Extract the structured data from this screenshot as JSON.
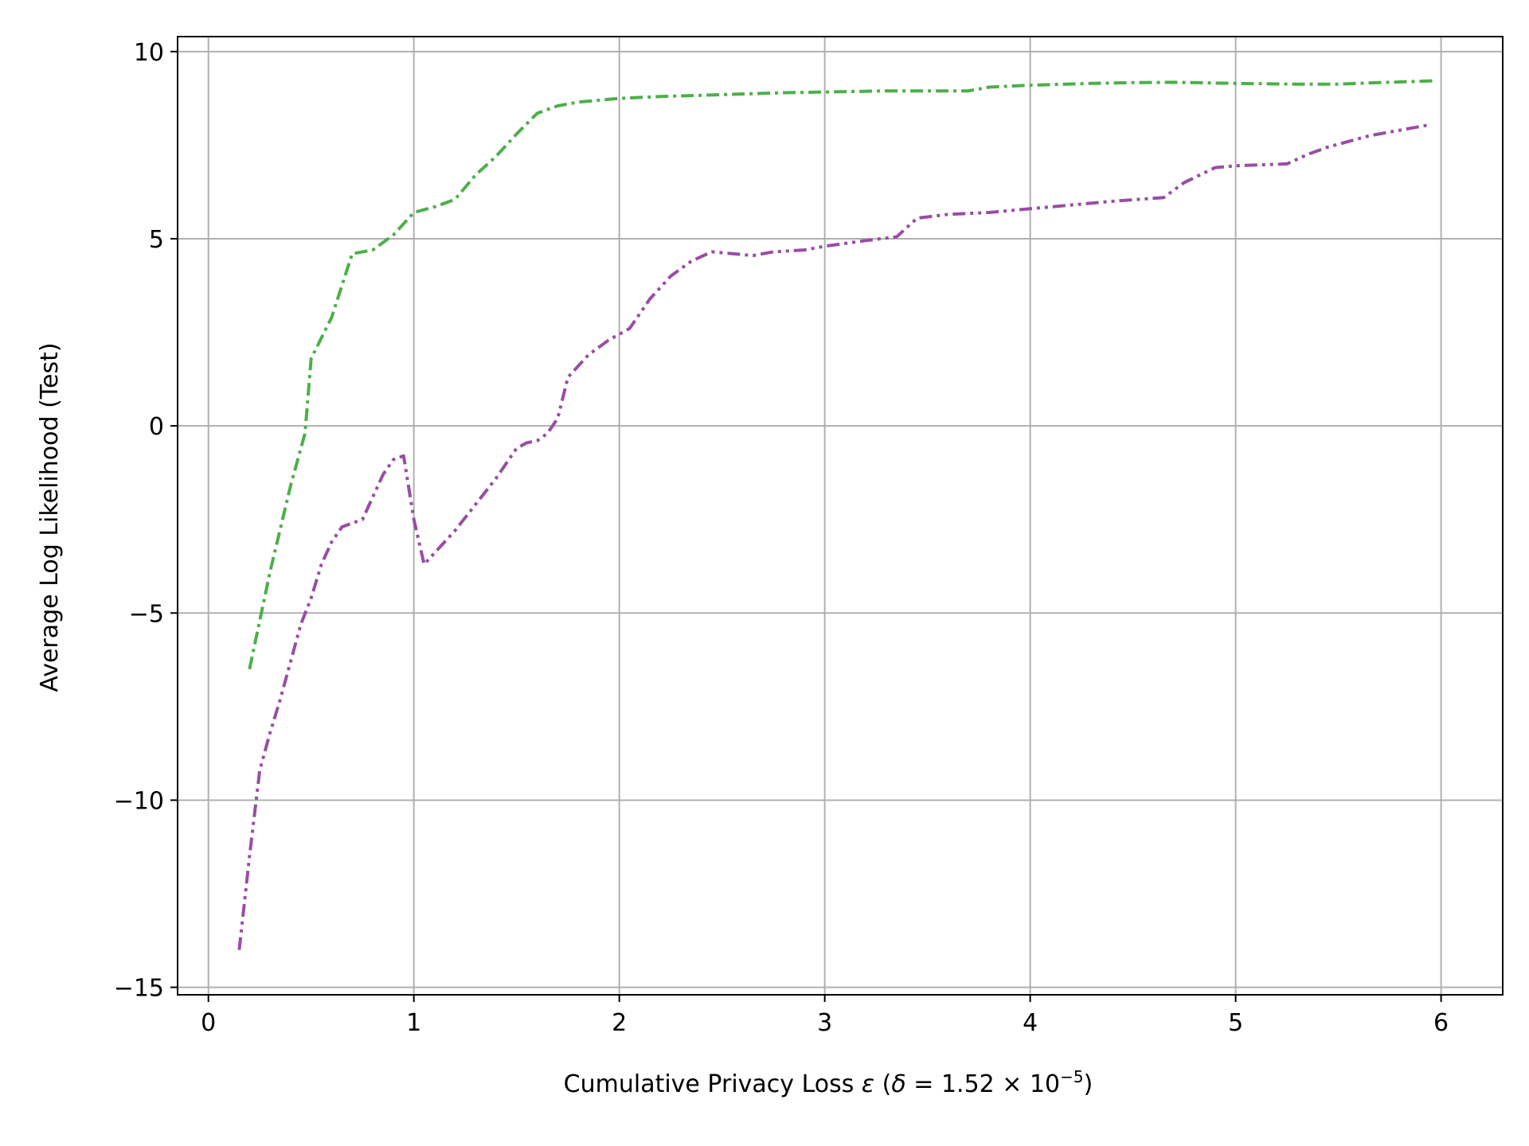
{
  "chart_data": {
    "type": "line",
    "title": "",
    "xlabel": {
      "text_main": "Cumulative Privacy Loss ",
      "epsilon": "ε",
      "paren_open": " (",
      "delta": "δ",
      "equals_value": " = 1.52 × 10",
      "exponent": "−5",
      "paren_close": ")"
    },
    "ylabel": "Average Log Likelihood (Test)",
    "xlim": [
      -0.15,
      6.3
    ],
    "ylim": [
      -15.2,
      10.4
    ],
    "x_ticks": [
      0,
      1,
      2,
      3,
      4,
      5,
      6
    ],
    "x_tick_labels": [
      "0",
      "1",
      "2",
      "3",
      "4",
      "5",
      "6"
    ],
    "y_ticks": [
      10,
      5,
      0,
      -5,
      -10,
      -15
    ],
    "y_tick_labels": [
      "10",
      "5",
      "0",
      "−5",
      "−10",
      "−15"
    ],
    "grid": true,
    "series": [
      {
        "color": "#4daf4a",
        "dash": "dashdot",
        "x": [
          0.2,
          0.3,
          0.4,
          0.47,
          0.5,
          0.6,
          0.7,
          0.8,
          0.9,
          1.0,
          1.1,
          1.2,
          1.3,
          1.4,
          1.5,
          1.6,
          1.7,
          1.8,
          2.0,
          2.2,
          2.5,
          2.8,
          3.0,
          3.3,
          3.5,
          3.7,
          3.8,
          4.0,
          4.3,
          4.5,
          4.7,
          5.0,
          5.3,
          5.5,
          5.7,
          5.97
        ],
        "y": [
          -6.5,
          -3.9,
          -1.6,
          -0.2,
          1.8,
          2.9,
          4.6,
          4.7,
          5.1,
          5.7,
          5.85,
          6.05,
          6.7,
          7.2,
          7.8,
          8.35,
          8.55,
          8.65,
          8.75,
          8.8,
          8.85,
          8.9,
          8.92,
          8.95,
          8.95,
          8.95,
          9.05,
          9.1,
          9.15,
          9.17,
          9.18,
          9.15,
          9.13,
          9.13,
          9.17,
          9.22
        ]
      },
      {
        "color": "#984ea3",
        "dash": "dashdotdot",
        "x": [
          0.15,
          0.2,
          0.25,
          0.3,
          0.35,
          0.4,
          0.45,
          0.5,
          0.55,
          0.6,
          0.65,
          0.75,
          0.8,
          0.85,
          0.9,
          0.95,
          1.0,
          1.05,
          1.1,
          1.2,
          1.3,
          1.4,
          1.5,
          1.55,
          1.6,
          1.65,
          1.7,
          1.75,
          1.85,
          1.95,
          2.05,
          2.15,
          2.25,
          2.35,
          2.45,
          2.55,
          2.65,
          2.75,
          2.9,
          3.0,
          3.2,
          3.35,
          3.45,
          3.6,
          3.8,
          4.0,
          4.2,
          4.4,
          4.65,
          4.75,
          4.9,
          5.0,
          5.25,
          5.35,
          5.45,
          5.55,
          5.65,
          5.8,
          5.95
        ],
        "y": [
          -14.0,
          -11.5,
          -9.2,
          -8.2,
          -7.3,
          -6.3,
          -5.3,
          -4.6,
          -3.7,
          -3.1,
          -2.7,
          -2.5,
          -1.9,
          -1.3,
          -0.9,
          -0.8,
          -2.5,
          -3.7,
          -3.4,
          -2.8,
          -2.1,
          -1.4,
          -0.6,
          -0.45,
          -0.4,
          -0.2,
          0.2,
          1.3,
          1.9,
          2.3,
          2.6,
          3.4,
          4.0,
          4.4,
          4.65,
          4.6,
          4.55,
          4.65,
          4.7,
          4.8,
          4.95,
          5.05,
          5.55,
          5.65,
          5.7,
          5.8,
          5.9,
          6.0,
          6.1,
          6.5,
          6.9,
          6.95,
          7.0,
          7.25,
          7.45,
          7.6,
          7.75,
          7.9,
          8.05
        ]
      }
    ]
  }
}
